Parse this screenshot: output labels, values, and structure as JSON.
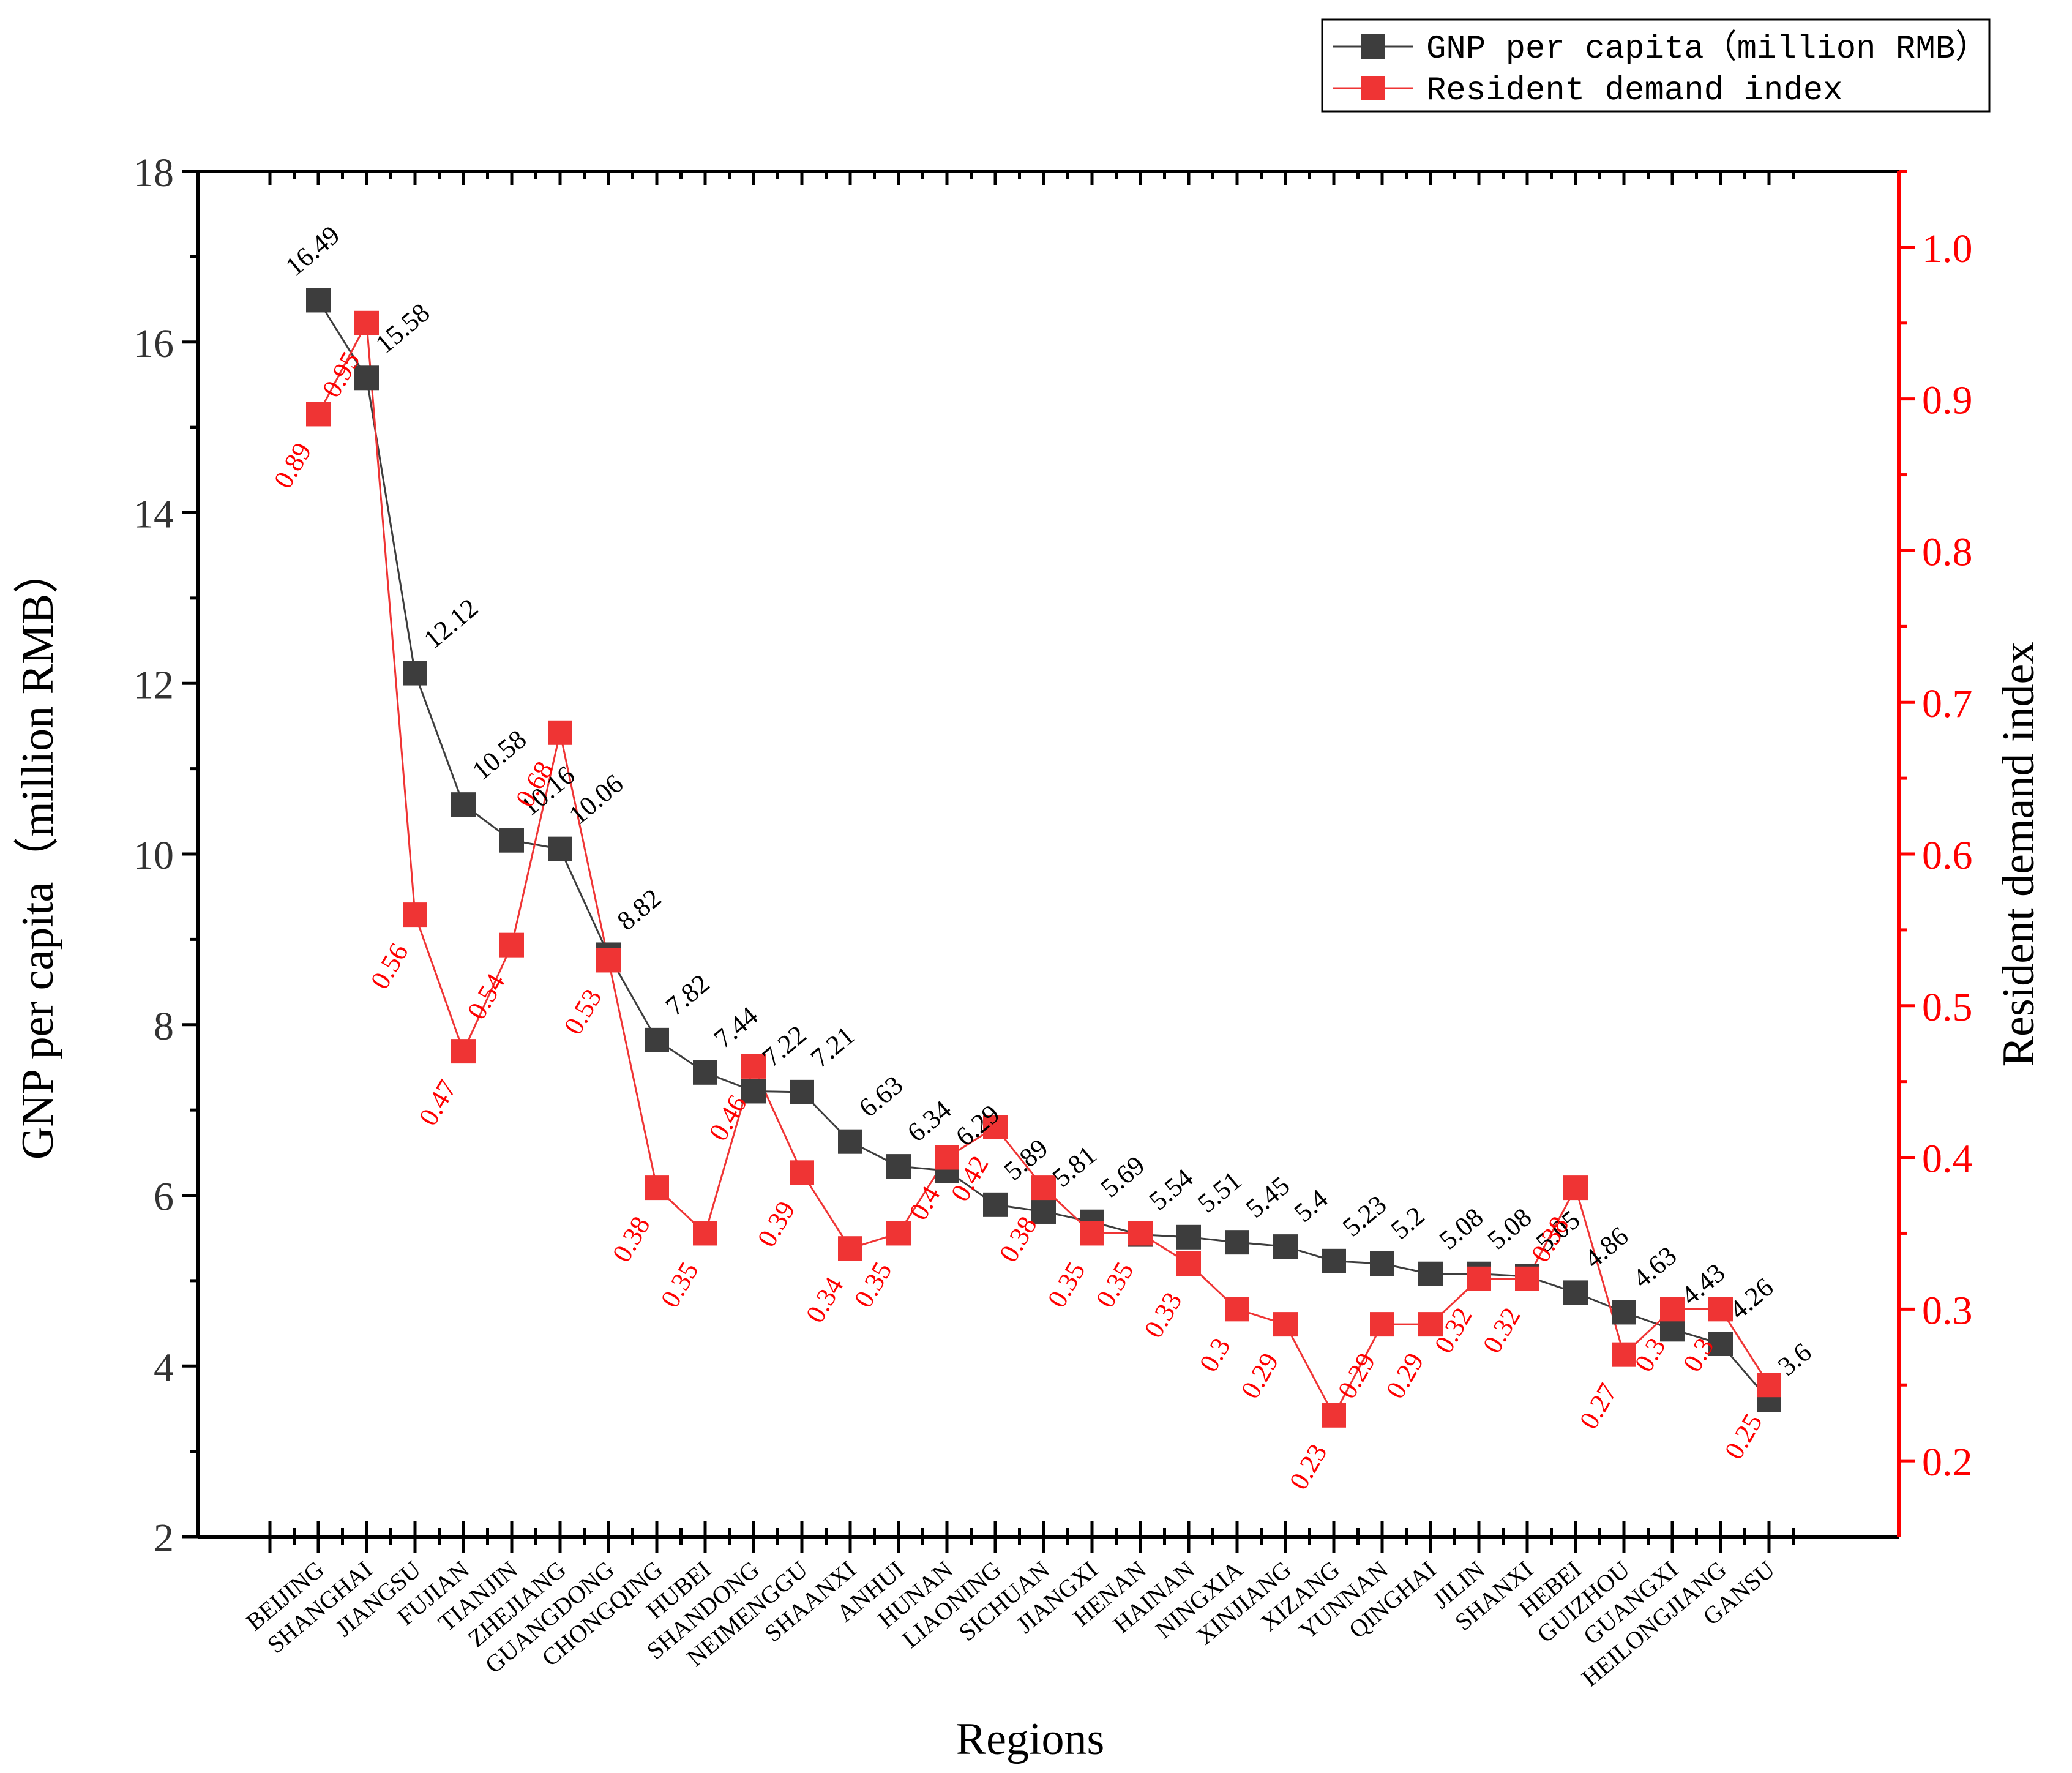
{
  "chart_data": {
    "type": "line",
    "xlabel": "Regions",
    "categories": [
      "BEIJING",
      "SHANGHAI",
      "JIANGSU",
      "FUJIAN",
      "TIANJIN",
      "ZHEJIANG",
      "GUANGDONG",
      "CHONGQING",
      "HUBEI",
      "SHANDONG",
      "NEIMENGGU",
      "SHAANXI",
      "ANHUI",
      "HUNAN",
      "LIAONING",
      "SICHUAN",
      "JIANGXI",
      "HENAN",
      "HAINAN",
      "NINGXIA",
      "XINJIANG",
      "XIZANG",
      "YUNNAN",
      "QINGHAI",
      "JILIN",
      "SHANXI",
      "HEBEI",
      "GUIZHOU",
      "GUANGXI",
      "HEILONGJIANG",
      "GANSU"
    ],
    "y_left": {
      "label": "GNP per capita（million RMB）",
      "range": [
        2,
        18
      ],
      "ticks": [
        2,
        4,
        6,
        8,
        10,
        12,
        14,
        16,
        18
      ],
      "tick_labels": [
        "2",
        "4",
        "6",
        "8",
        "10",
        "12",
        "14",
        "16",
        "18"
      ]
    },
    "y_right": {
      "label": "Resident demand index",
      "range": [
        0.15,
        1.05
      ],
      "ticks": [
        0.2,
        0.3,
        0.4,
        0.5,
        0.6,
        0.7,
        0.8,
        0.9,
        1.0
      ],
      "tick_labels": [
        "0.2",
        "0.3",
        "0.4",
        "0.5",
        "0.6",
        "0.7",
        "0.8",
        "0.9",
        "1.0"
      ],
      "color": "#ff0000"
    },
    "series": [
      {
        "name": "GNP per capita（million RMB）",
        "axis": "left",
        "color": "#3d3d3d",
        "values": [
          16.49,
          15.58,
          12.12,
          10.58,
          10.16,
          10.06,
          8.82,
          7.82,
          7.44,
          7.22,
          7.21,
          6.63,
          6.34,
          6.29,
          5.89,
          5.81,
          5.69,
          5.54,
          5.51,
          5.45,
          5.4,
          5.23,
          5.2,
          5.08,
          5.08,
          5.05,
          4.86,
          4.63,
          4.43,
          4.26,
          3.6
        ],
        "labels": [
          "16.49",
          "15.58",
          "12.12",
          "10.58",
          "10.16",
          "10.06",
          "8.82",
          "7.82",
          "7.44",
          "7.22",
          "7.21",
          "6.63",
          "6.34",
          "6.29",
          "5.89",
          "5.81",
          "5.69",
          "5.54",
          "5.51",
          "5.45",
          "5.4",
          "5.23",
          "5.2",
          "5.08",
          "5.08",
          "5.05",
          "4.86",
          "4.63",
          "4.43",
          "4.26",
          "3.6"
        ]
      },
      {
        "name": "Resident demand index",
        "axis": "right",
        "color": "#ef3434",
        "values": [
          0.89,
          0.95,
          0.56,
          0.47,
          0.54,
          0.68,
          0.53,
          0.38,
          0.35,
          0.46,
          0.39,
          0.34,
          0.35,
          0.4,
          0.42,
          0.38,
          0.35,
          0.35,
          0.33,
          0.3,
          0.29,
          0.23,
          0.29,
          0.29,
          0.32,
          0.32,
          0.38,
          0.27,
          0.3,
          0.3,
          0.25
        ],
        "labels": [
          "0.89",
          "0.95",
          "0.56",
          "0.47",
          "0.54",
          "0.68",
          "0.53",
          "0.38",
          "0.35",
          "0.46",
          "0.39",
          "0.34",
          "0.35",
          "0.4",
          "0.42",
          "0.38",
          "0.35",
          "0.35",
          "0.33",
          "0.3",
          "0.29",
          "0.23",
          "0.29",
          "0.29",
          "0.32",
          "0.32",
          "0.38",
          "0.27",
          "0.3",
          "0.3",
          "0.25"
        ]
      }
    ],
    "legend": "top-right"
  }
}
